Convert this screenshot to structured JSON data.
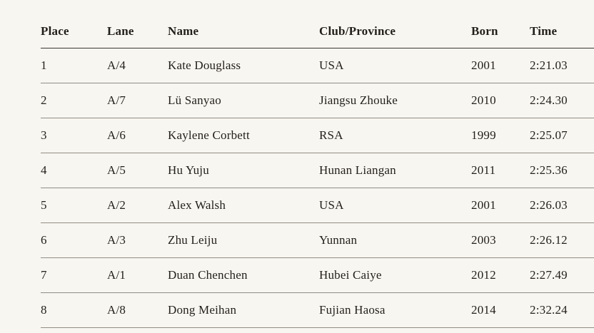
{
  "page": {
    "background_color": "#f8f6f0",
    "text_color": "#221f1b",
    "header_rule_color": "#3b3833",
    "row_rule_color": "#8f8d86"
  },
  "table": {
    "columns": [
      "Place",
      "Lane",
      "Name",
      "Club/Province",
      "Born",
      "Time"
    ],
    "rows": [
      [
        "1",
        "A/4",
        "Kate Douglass",
        "USA",
        "2001",
        "2:21.03"
      ],
      [
        "2",
        "A/7",
        "Lü Sanyao",
        "Jiangsu Zhouke",
        "2010",
        "2:24.30"
      ],
      [
        "3",
        "A/6",
        "Kaylene Corbett",
        "RSA",
        "1999",
        "2:25.07"
      ],
      [
        "4",
        "A/5",
        "Hu Yuju",
        "Hunan Liangan",
        "2011",
        "2:25.36"
      ],
      [
        "5",
        "A/2",
        "Alex Walsh",
        "USA",
        "2001",
        "2:26.03"
      ],
      [
        "6",
        "A/3",
        "Zhu Leiju",
        "Yunnan",
        "2003",
        "2:26.12"
      ],
      [
        "7",
        "A/1",
        "Duan Chenchen",
        "Hubei Caiye",
        "2012",
        "2:27.49"
      ],
      [
        "8",
        "A/8",
        "Dong Meihan",
        "Fujian Haosa",
        "2014",
        "2:32.24"
      ]
    ]
  },
  "chart_data": {
    "type": "table",
    "title": "",
    "columns": [
      "Place",
      "Lane",
      "Name",
      "Club/Province",
      "Born",
      "Time"
    ],
    "rows": [
      {
        "place": 1,
        "lane": "A/4",
        "name": "Kate Douglass",
        "club_province": "USA",
        "born": 2001,
        "time": "2:21.03"
      },
      {
        "place": 2,
        "lane": "A/7",
        "name": "Lü Sanyao",
        "club_province": "Jiangsu Zhouke",
        "born": 2010,
        "time": "2:24.30"
      },
      {
        "place": 3,
        "lane": "A/6",
        "name": "Kaylene Corbett",
        "club_province": "RSA",
        "born": 1999,
        "time": "2:25.07"
      },
      {
        "place": 4,
        "lane": "A/5",
        "name": "Hu Yuju",
        "club_province": "Hunan Liangan",
        "born": 2011,
        "time": "2:25.36"
      },
      {
        "place": 5,
        "lane": "A/2",
        "name": "Alex Walsh",
        "club_province": "USA",
        "born": 2001,
        "time": "2:26.03"
      },
      {
        "place": 6,
        "lane": "A/3",
        "name": "Zhu Leiju",
        "club_province": "Yunnan",
        "born": 2003,
        "time": "2:26.12"
      },
      {
        "place": 7,
        "lane": "A/1",
        "name": "Duan Chenchen",
        "club_province": "Hubei Caiye",
        "born": 2012,
        "time": "2:27.49"
      },
      {
        "place": 8,
        "lane": "A/8",
        "name": "Dong Meihan",
        "club_province": "Fujian Haosa",
        "born": 2014,
        "time": "2:32.24"
      }
    ]
  }
}
